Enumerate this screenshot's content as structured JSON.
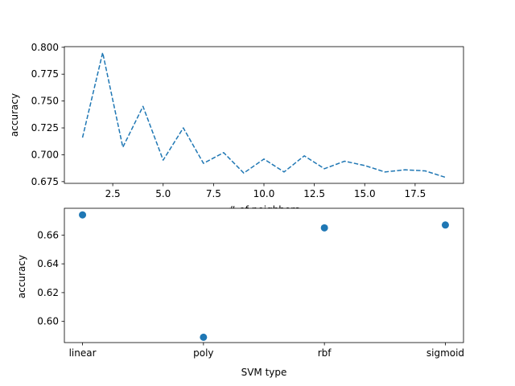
{
  "chart_data": [
    {
      "type": "line",
      "xlabel": "# of neighbors",
      "ylabel": "accuracy",
      "xlim": [
        0.1,
        19.9
      ],
      "ylim": [
        0.6734,
        0.8006
      ],
      "line_style": "dashed",
      "color": "#1f77b4",
      "grid": false,
      "series": [
        {
          "x": [
            1,
            2,
            3,
            4,
            5,
            6,
            7,
            8,
            9,
            10,
            11,
            12,
            13,
            14,
            15,
            16,
            17,
            18,
            19
          ],
          "values": [
            0.716,
            0.795,
            0.707,
            0.745,
            0.695,
            0.725,
            0.692,
            0.702,
            0.683,
            0.696,
            0.684,
            0.699,
            0.687,
            0.694,
            0.69,
            0.684,
            0.686,
            0.685,
            0.679
          ]
        }
      ],
      "xticks": [
        2.5,
        5.0,
        7.5,
        10.0,
        12.5,
        15.0,
        17.5
      ],
      "xtick_labels": [
        "2.5",
        "5.0",
        "7.5",
        "10.0",
        "12.5",
        "15.0",
        "17.5"
      ],
      "yticks": [
        0.675,
        0.7,
        0.725,
        0.75,
        0.775,
        0.8
      ],
      "ytick_labels": [
        "0.675",
        "0.700",
        "0.725",
        "0.750",
        "0.775",
        "0.800"
      ]
    },
    {
      "type": "scatter",
      "xlabel": "SVM type",
      "ylabel": "accuracy",
      "categories": [
        "linear",
        "poly",
        "rbf",
        "sigmoid"
      ],
      "ylim": [
        0.5853,
        0.6786
      ],
      "color": "#1f77b4",
      "grid": false,
      "series": [
        {
          "values": [
            0.674,
            0.589,
            0.665,
            0.667
          ]
        }
      ],
      "yticks": [
        0.6,
        0.62,
        0.64,
        0.66
      ],
      "ytick_labels": [
        "0.60",
        "0.62",
        "0.64",
        "0.66"
      ]
    }
  ]
}
